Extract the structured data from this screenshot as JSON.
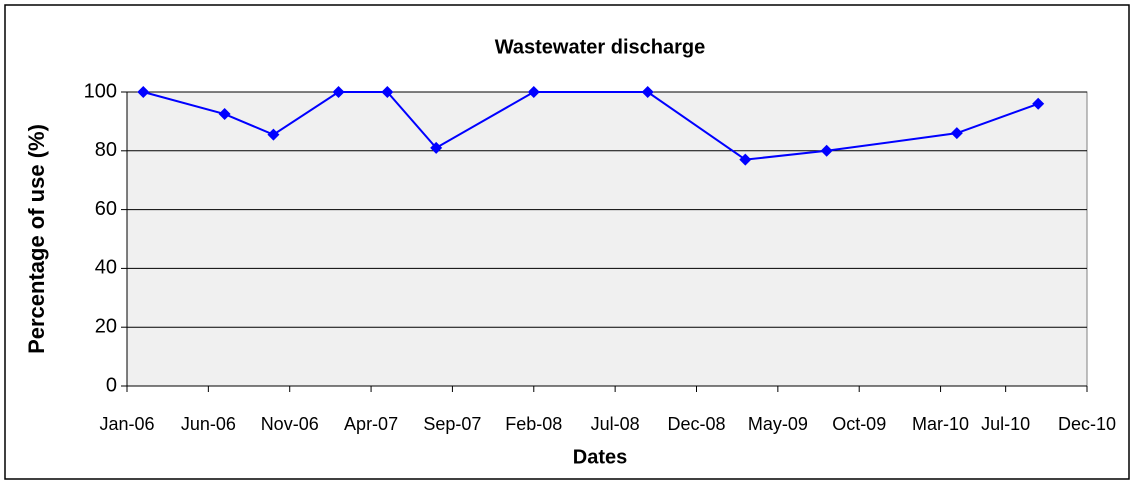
{
  "chart_data": {
    "type": "line",
    "title": "Wastewater discharge",
    "x_label": "Dates",
    "y_label": "Percentage of use (%)",
    "x": [
      "2006-02",
      "2006-07",
      "2006-10",
      "2007-02",
      "2007-05",
      "2007-08",
      "2008-02",
      "2008-09",
      "2009-03",
      "2009-08",
      "2010-04",
      "2010-09"
    ],
    "series": [
      {
        "name": "Wastewater discharge",
        "color": "#0000ff",
        "values": [
          100,
          92.5,
          85.5,
          100,
          100,
          81,
          100,
          100,
          77,
          80,
          86,
          96
        ]
      }
    ],
    "xlim": [
      "2006-01",
      "2010-12"
    ],
    "xticks": [
      {
        "value": "2006-01",
        "label": "Jan-06"
      },
      {
        "value": "2006-06",
        "label": "Jun-06"
      },
      {
        "value": "2006-11",
        "label": "Nov-06"
      },
      {
        "value": "2007-04",
        "label": "Apr-07"
      },
      {
        "value": "2007-09",
        "label": "Sep-07"
      },
      {
        "value": "2008-02",
        "label": "Feb-08"
      },
      {
        "value": "2008-07",
        "label": "Jul-08"
      },
      {
        "value": "2008-12",
        "label": "Dec-08"
      },
      {
        "value": "2009-05",
        "label": "May-09"
      },
      {
        "value": "2009-10",
        "label": "Oct-09"
      },
      {
        "value": "2010-03",
        "label": "Mar-10"
      },
      {
        "value": "2010-07",
        "label": "Jul-10"
      },
      {
        "value": "2010-12",
        "label": "Dec-10"
      }
    ],
    "ylim": [
      0,
      100
    ],
    "yticks": [
      0,
      20,
      40,
      60,
      80,
      100
    ],
    "grid": true
  }
}
